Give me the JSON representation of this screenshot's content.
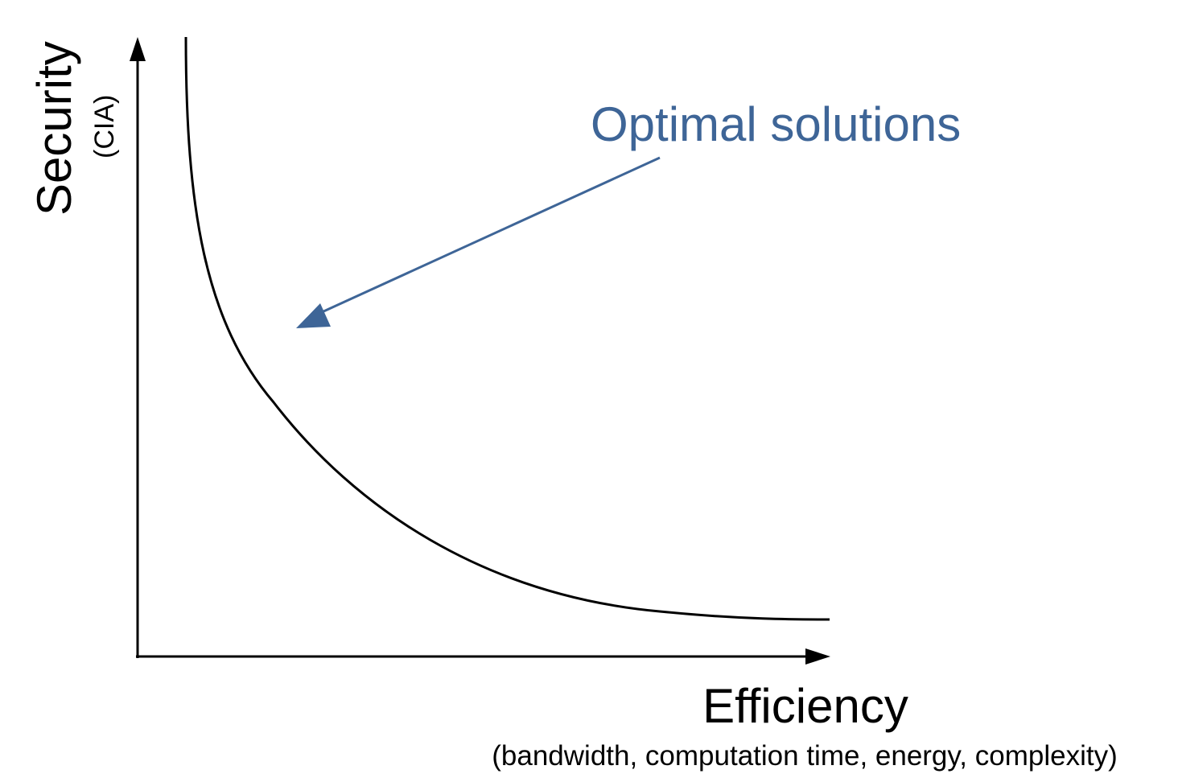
{
  "diagram": {
    "y_label": "Security",
    "y_sublabel": "(CIA)",
    "x_label": "Efficiency",
    "x_sublabel": "(bandwidth, computation time, energy, complexity)",
    "annotation": "Optimal solutions",
    "colors": {
      "axis": "#000000",
      "curve": "#000000",
      "annotation": "#3e6597",
      "background": "#ffffff"
    },
    "curve_shape": "convex decreasing trade-off curve (security vs efficiency)"
  }
}
